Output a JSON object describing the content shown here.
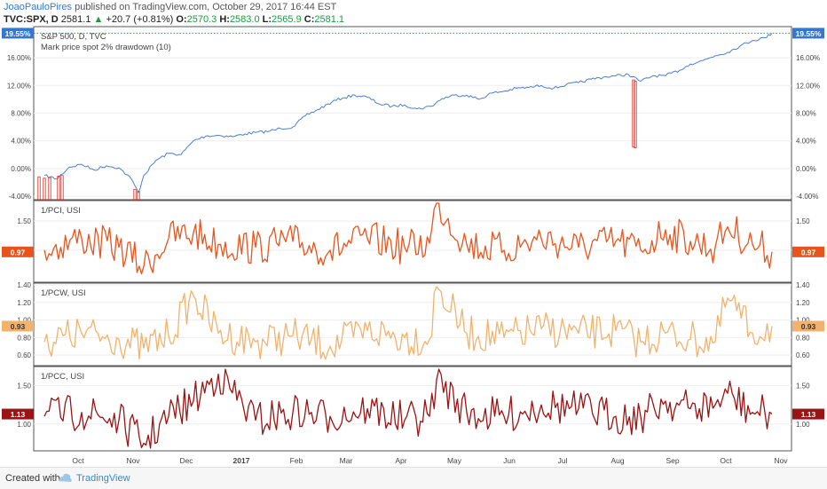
{
  "header": {
    "author": "JoaoPauloPires",
    "published": " published on TradingView.com, October 29, 2017 16:44 EST",
    "symbol": "TVC:SPX, D",
    "last": "2581.1",
    "change": "+20.7 (+0.81%)",
    "o_label": "O:",
    "o_val": "2570.3",
    "h_label": "H:",
    "h_val": "2583.0",
    "l_label": "L:",
    "l_val": "2565.9",
    "c_label": "C:",
    "c_val": "2581.1"
  },
  "footer": {
    "created_with": "Created with",
    "brand": "TradingView"
  },
  "colors": {
    "price": "#4a7fd0",
    "pci": "#e8551c",
    "pcw": "#f3b26c",
    "pcc": "#9b1414",
    "drawdown": "#e0281e",
    "badge_blue": "#3576d0"
  },
  "chart_data": [
    {
      "type": "line",
      "title": "S&P 500, D, TVC",
      "subtitle": "Mark price spot 2% drawdown (10)",
      "x_ticks": [
        "Oct",
        "Nov",
        "Dec",
        "2017",
        "Feb",
        "Mar",
        "Apr",
        "May",
        "Jun",
        "Jul",
        "Aug",
        "Sep",
        "Oct",
        "Nov"
      ],
      "y_ticks": [
        "16.00%",
        "12.00%",
        "8.00%",
        "4.00%",
        "0.00%",
        "-4.00%"
      ],
      "ylim": [
        -4.5,
        20.5
      ],
      "last_value_label": "19.55%",
      "series": [
        {
          "x": [
            "2016-09-12",
            "2016-09-19",
            "2016-09-26",
            "2016-10-03",
            "2016-10-10",
            "2016-10-17",
            "2016-10-24",
            "2016-10-31",
            "2016-11-04",
            "2016-11-07",
            "2016-11-14",
            "2016-11-21",
            "2016-11-28",
            "2016-12-05",
            "2016-12-12",
            "2016-12-19",
            "2016-12-27",
            "2017-01-03",
            "2017-01-09",
            "2017-01-17",
            "2017-01-23",
            "2017-01-30",
            "2017-02-06",
            "2017-02-13",
            "2017-02-21",
            "2017-02-27",
            "2017-03-06",
            "2017-03-13",
            "2017-03-20",
            "2017-03-27",
            "2017-04-03",
            "2017-04-10",
            "2017-04-18",
            "2017-04-24",
            "2017-05-01",
            "2017-05-08",
            "2017-05-15",
            "2017-05-22",
            "2017-05-30",
            "2017-06-05",
            "2017-06-12",
            "2017-06-19",
            "2017-06-26",
            "2017-07-03",
            "2017-07-10",
            "2017-07-17",
            "2017-07-24",
            "2017-07-31",
            "2017-08-07",
            "2017-08-14",
            "2017-08-21",
            "2017-08-28",
            "2017-09-05",
            "2017-09-11",
            "2017-09-18",
            "2017-09-25",
            "2017-10-02",
            "2017-10-09",
            "2017-10-16",
            "2017-10-23",
            "2017-10-27"
          ],
          "values": [
            -1.0,
            -1.5,
            0.2,
            0.6,
            -0.2,
            0.4,
            0.1,
            -1.5,
            -3.5,
            -1.0,
            1.2,
            2.2,
            2.0,
            4.0,
            4.7,
            4.8,
            4.6,
            5.0,
            5.2,
            5.4,
            5.8,
            6.0,
            7.6,
            8.5,
            9.6,
            10.2,
            10.6,
            10.3,
            9.3,
            9.0,
            9.2,
            8.6,
            9.0,
            10.1,
            10.6,
            10.6,
            10.0,
            10.9,
            11.2,
            11.6,
            11.7,
            12.0,
            11.6,
            12.1,
            12.4,
            12.9,
            13.2,
            13.4,
            13.6,
            12.6,
            13.4,
            13.4,
            14.2,
            15.1,
            15.6,
            16.3,
            16.8,
            17.7,
            18.5,
            18.9,
            19.55
          ]
        }
      ],
      "drawdown_marks": [
        {
          "x": "2016-09-09",
          "from": -1.2,
          "to": -4.5
        },
        {
          "x": "2016-09-12",
          "from": -1.4,
          "to": -4.5
        },
        {
          "x": "2016-09-15",
          "from": -1.3,
          "to": -4.5
        },
        {
          "x": "2016-09-20",
          "from": -1.1,
          "to": -4.5
        },
        {
          "x": "2016-09-22",
          "from": -1.0,
          "to": -4.5
        },
        {
          "x": "2016-11-02",
          "from": -3.0,
          "to": -4.5
        },
        {
          "x": "2016-11-04",
          "from": -3.3,
          "to": -4.5
        },
        {
          "x": "2017-08-10",
          "from": 12.8,
          "to": 3.1
        },
        {
          "x": "2017-08-11",
          "from": 12.6,
          "to": 3.0
        }
      ]
    },
    {
      "type": "line",
      "title": "1/PCI, USI",
      "y_ticks": [
        "1.50",
        "1.00"
      ],
      "ylim": [
        0.45,
        1.85
      ],
      "last_value_label": "0.97",
      "series": [
        {
          "x": [
            "2016-09-12",
            "2016-10-03",
            "2016-10-24",
            "2016-11-07",
            "2016-11-21",
            "2016-12-05",
            "2016-12-19",
            "2017-01-09",
            "2017-01-30",
            "2017-02-20",
            "2017-03-13",
            "2017-04-03",
            "2017-04-17",
            "2017-04-21",
            "2017-05-08",
            "2017-05-29",
            "2017-06-19",
            "2017-07-10",
            "2017-07-31",
            "2017-08-14",
            "2017-08-28",
            "2017-09-11",
            "2017-09-25",
            "2017-10-02",
            "2017-10-16",
            "2017-10-27"
          ],
          "values": [
            1.0,
            1.2,
            1.05,
            0.72,
            1.2,
            1.3,
            1.1,
            1.05,
            1.15,
            1.0,
            1.2,
            1.05,
            1.12,
            1.82,
            1.1,
            1.0,
            1.2,
            1.05,
            1.15,
            1.0,
            1.35,
            1.15,
            1.05,
            1.4,
            1.1,
            0.97
          ]
        }
      ]
    },
    {
      "type": "line",
      "title": "1/PCW, USI",
      "y_ticks": [
        "1.40",
        "1.20",
        "1.00",
        "0.80",
        "0.60"
      ],
      "ylim": [
        0.48,
        1.42
      ],
      "last_value_label": "0.93",
      "series": [
        {
          "x": [
            "2016-09-12",
            "2016-10-03",
            "2016-10-24",
            "2016-11-07",
            "2016-11-21",
            "2016-12-05",
            "2016-12-19",
            "2017-01-09",
            "2017-01-30",
            "2017-02-20",
            "2017-03-13",
            "2017-04-03",
            "2017-04-17",
            "2017-04-21",
            "2017-05-08",
            "2017-05-29",
            "2017-06-19",
            "2017-07-10",
            "2017-07-31",
            "2017-08-14",
            "2017-08-28",
            "2017-09-11",
            "2017-09-25",
            "2017-10-02",
            "2017-10-16",
            "2017-10-27"
          ],
          "values": [
            0.75,
            0.85,
            0.78,
            0.68,
            0.82,
            1.28,
            0.85,
            0.75,
            0.82,
            0.7,
            0.88,
            0.8,
            0.78,
            1.38,
            0.85,
            0.8,
            0.9,
            0.85,
            0.88,
            0.75,
            0.85,
            0.78,
            0.75,
            1.25,
            0.85,
            0.93
          ]
        }
      ]
    },
    {
      "type": "line",
      "title": "1/PCC, USI",
      "y_ticks": [
        "1.50",
        "1.00"
      ],
      "ylim": [
        0.65,
        1.75
      ],
      "last_value_label": "1.13",
      "series": [
        {
          "x": [
            "2016-09-12",
            "2016-10-03",
            "2016-10-24",
            "2016-11-07",
            "2016-11-21",
            "2016-12-05",
            "2016-12-19",
            "2017-01-09",
            "2017-01-30",
            "2017-02-20",
            "2017-03-13",
            "2017-04-03",
            "2017-04-17",
            "2017-04-21",
            "2017-05-08",
            "2017-05-29",
            "2017-06-19",
            "2017-07-10",
            "2017-07-31",
            "2017-08-14",
            "2017-08-28",
            "2017-09-11",
            "2017-09-25",
            "2017-10-02",
            "2017-10-16",
            "2017-10-27"
          ],
          "values": [
            1.1,
            1.15,
            1.05,
            0.75,
            1.1,
            1.3,
            1.65,
            1.05,
            1.15,
            1.1,
            1.2,
            1.05,
            1.1,
            1.58,
            1.15,
            1.1,
            1.25,
            1.2,
            1.1,
            1.1,
            1.3,
            1.2,
            1.25,
            1.4,
            1.15,
            1.13
          ]
        }
      ]
    }
  ]
}
